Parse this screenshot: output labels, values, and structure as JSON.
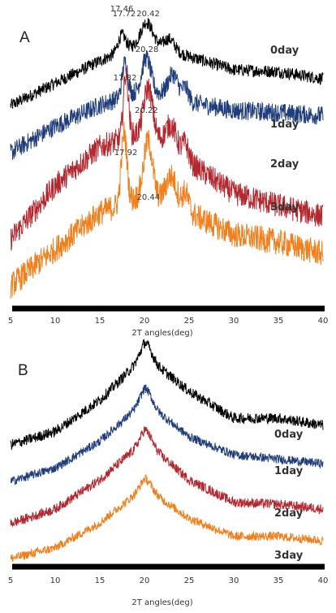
{
  "chart_data": [
    {
      "type": "line",
      "panel": "A",
      "xlabel": "2T angles(deg)",
      "xlim": [
        5,
        40
      ],
      "xticks": [
        5,
        10,
        15,
        20,
        25,
        30,
        35,
        40
      ],
      "grid": false,
      "series": [
        {
          "name": "0day",
          "color": "#000000",
          "profile": {
            "baseline": [
              [
                5,
                0.0
              ],
              [
                10,
                0.25
              ],
              [
                15,
                0.5
              ],
              [
                20,
                0.72
              ],
              [
                25,
                0.55
              ],
              [
                30,
                0.4
              ],
              [
                35,
                0.38
              ],
              [
                40,
                0.3
              ]
            ],
            "peaks": [
              [
                17.46,
                0.18,
                0.6
              ],
              [
                20.28,
                0.22,
                0.9
              ],
              [
                22.8,
                0.12,
                0.8
              ]
            ],
            "noise": 0.07
          },
          "peak_labels": [
            {
              "x": 17.46,
              "text": "17.46"
            },
            {
              "x": 20.28,
              "text": "20.28"
            }
          ]
        },
        {
          "name": "1day",
          "color": "#1f3d7a",
          "profile": {
            "baseline": [
              [
                5,
                0.0
              ],
              [
                10,
                0.25
              ],
              [
                15,
                0.45
              ],
              [
                20,
                0.6
              ],
              [
                25,
                0.48
              ],
              [
                30,
                0.4
              ],
              [
                35,
                0.38
              ],
              [
                40,
                0.35
              ]
            ],
            "peaks": [
              [
                17.82,
                0.32,
                0.45
              ],
              [
                20.22,
                0.3,
                0.7
              ],
              [
                23.2,
                0.22,
                0.8
              ],
              [
                24.6,
                0.12,
                0.5
              ]
            ],
            "noise": 0.09
          },
          "peak_labels": [
            {
              "x": 17.82,
              "text": "17.82"
            },
            {
              "x": 20.22,
              "text": "20.22"
            }
          ]
        },
        {
          "name": "2day",
          "color": "#b3272e",
          "profile": {
            "baseline": [
              [
                5,
                0.0
              ],
              [
                10,
                0.35
              ],
              [
                15,
                0.6
              ],
              [
                20,
                0.7
              ],
              [
                25,
                0.5
              ],
              [
                30,
                0.3
              ],
              [
                35,
                0.22
              ],
              [
                40,
                0.15
              ]
            ],
            "peaks": [
              [
                17.92,
                0.42,
                0.4
              ],
              [
                20.44,
                0.3,
                0.7
              ],
              [
                23.0,
                0.16,
                0.9
              ],
              [
                24.6,
                0.1,
                0.5
              ]
            ],
            "noise": 0.08
          },
          "peak_labels": [
            {
              "x": 17.92,
              "text": "17.92"
            },
            {
              "x": 20.44,
              "text": "20.44"
            }
          ]
        },
        {
          "name": "3day",
          "color": "#f07f1c",
          "profile": {
            "baseline": [
              [
                5,
                0.0
              ],
              [
                10,
                0.25
              ],
              [
                15,
                0.5
              ],
              [
                20,
                0.62
              ],
              [
                25,
                0.5
              ],
              [
                30,
                0.35
              ],
              [
                35,
                0.3
              ],
              [
                40,
                0.22
              ]
            ],
            "peaks": [
              [
                17.72,
                0.48,
                0.45
              ],
              [
                20.42,
                0.38,
                0.7
              ],
              [
                23.0,
                0.2,
                0.9
              ],
              [
                24.6,
                0.12,
                0.5
              ]
            ],
            "noise": 0.09
          },
          "peak_labels": [
            {
              "x": 17.72,
              "text": "17.72"
            },
            {
              "x": 20.42,
              "text": "20.42"
            }
          ]
        }
      ]
    },
    {
      "type": "line",
      "panel": "B",
      "xlabel": "2T angles(deg)",
      "xlim": [
        5,
        40
      ],
      "xticks": [
        5,
        10,
        15,
        20,
        25,
        30,
        35,
        40
      ],
      "grid": false,
      "series": [
        {
          "name": "0day",
          "color": "#000000",
          "profile": {
            "baseline": [
              [
                5,
                0.0
              ],
              [
                10,
                0.15
              ],
              [
                15,
                0.5
              ],
              [
                20,
                1.0
              ],
              [
                25,
                0.6
              ],
              [
                30,
                0.3
              ],
              [
                35,
                0.3
              ],
              [
                40,
                0.22
              ]
            ],
            "peaks": [
              [
                20.2,
                0.15,
                0.9
              ]
            ],
            "noise": 0.06
          },
          "peak_labels": []
        },
        {
          "name": "1day",
          "color": "#1f3d7a",
          "profile": {
            "baseline": [
              [
                5,
                0.0
              ],
              [
                10,
                0.15
              ],
              [
                15,
                0.45
              ],
              [
                20,
                0.9
              ],
              [
                25,
                0.5
              ],
              [
                30,
                0.3
              ],
              [
                35,
                0.25
              ],
              [
                40,
                0.2
              ]
            ],
            "peaks": [
              [
                20.2,
                0.15,
                0.9
              ]
            ],
            "noise": 0.05
          },
          "peak_labels": []
        },
        {
          "name": "2day",
          "color": "#b3272e",
          "profile": {
            "baseline": [
              [
                5,
                0.0
              ],
              [
                10,
                0.15
              ],
              [
                15,
                0.45
              ],
              [
                20,
                0.85
              ],
              [
                25,
                0.45
              ],
              [
                30,
                0.22
              ],
              [
                35,
                0.2
              ],
              [
                40,
                0.15
              ]
            ],
            "peaks": [
              [
                20.2,
                0.12,
                0.9
              ]
            ],
            "noise": 0.05
          },
          "peak_labels": []
        },
        {
          "name": "3day",
          "color": "#f07f1c",
          "profile": {
            "baseline": [
              [
                5,
                0.0
              ],
              [
                10,
                0.12
              ],
              [
                15,
                0.4
              ],
              [
                20,
                0.8
              ],
              [
                25,
                0.45
              ],
              [
                30,
                0.25
              ],
              [
                35,
                0.25
              ],
              [
                40,
                0.2
              ]
            ],
            "peaks": [
              [
                20.2,
                0.1,
                0.9
              ]
            ],
            "noise": 0.05
          },
          "peak_labels": []
        }
      ]
    }
  ]
}
